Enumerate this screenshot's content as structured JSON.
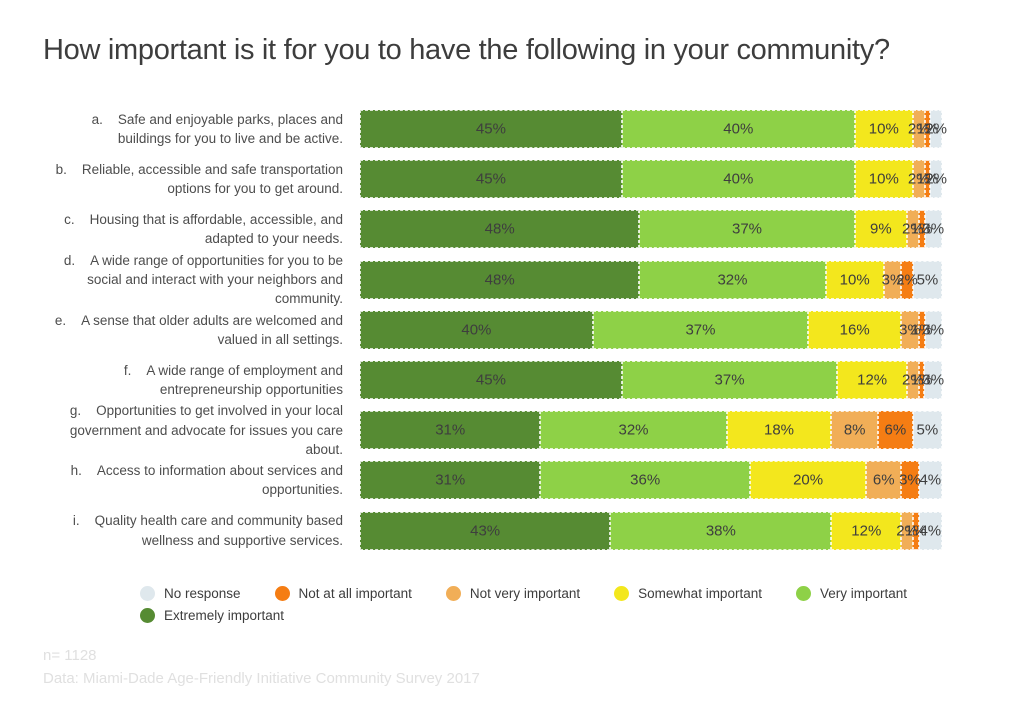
{
  "title": "How important is it for you to have the following in your community?",
  "footer": {
    "n": "n= 1128",
    "source": "Data: Miami-Dade Age-Friendly Initiative Community Survey 2017"
  },
  "colors": {
    "extremely_important": "#568b33",
    "very_important": "#8ed147",
    "somewhat_important": "#f3e71d",
    "not_very_important": "#f1ae57",
    "not_at_all_important": "#f57d13",
    "no_response": "#dfe8ed",
    "title_text": "#3d3d3d",
    "label_text": "#4d4d4d",
    "bar_label_text": "#3e3e3e",
    "footer_text": "#e0e0e0"
  },
  "legend": {
    "rows": [
      [
        {
          "label": "No response",
          "color": "#dfe8ed"
        },
        {
          "label": "Not at all important",
          "color": "#f57d13"
        },
        {
          "label": "Not very important",
          "color": "#f1ae57"
        },
        {
          "label": "Somewhat important",
          "color": "#f3e71d"
        },
        {
          "label": "Very important",
          "color": "#8ed147"
        }
      ],
      [
        {
          "label": "Extremely important",
          "color": "#568b33"
        }
      ]
    ]
  },
  "chart_data": {
    "type": "bar",
    "stacked": true,
    "orientation": "horizontal",
    "value_unit": "%",
    "xlim": [
      0,
      100
    ],
    "grid": false,
    "legend_position": "bottom",
    "categories": [
      {
        "letter": "a.",
        "text": "Safe and enjoyable parks, places and buildings for you to live and be active."
      },
      {
        "letter": "b.",
        "text": "Reliable, accessible and safe transportation options for you to get around."
      },
      {
        "letter": "c.",
        "text": "Housing that is affordable, accessible, and adapted to your needs."
      },
      {
        "letter": "d.",
        "text": "A wide range of opportunities for you to be social and interact with your neighbors and community."
      },
      {
        "letter": "e.",
        "text": "A sense that older adults are welcomed and valued in all settings."
      },
      {
        "letter": "f.",
        "text": "A wide range of employment and entrepreneurship opportunities"
      },
      {
        "letter": "g.",
        "text": "Opportunities to get involved in your local government and advocate for issues you care about."
      },
      {
        "letter": "h.",
        "text": "Access to information about services and opportunities."
      },
      {
        "letter": "i.",
        "text": "Quality health care and community based wellness and supportive services."
      }
    ],
    "series": [
      {
        "name": "Extremely important",
        "color": "#568b33",
        "values": [
          45,
          45,
          48,
          48,
          40,
          45,
          31,
          31,
          43
        ]
      },
      {
        "name": "Very important",
        "color": "#8ed147",
        "values": [
          40,
          40,
          37,
          32,
          37,
          37,
          32,
          36,
          38
        ]
      },
      {
        "name": "Somewhat important",
        "color": "#f3e71d",
        "values": [
          10,
          10,
          9,
          10,
          16,
          12,
          18,
          20,
          12
        ]
      },
      {
        "name": "Not very important",
        "color": "#f1ae57",
        "values": [
          2,
          2,
          2,
          3,
          3,
          2,
          8,
          6,
          2
        ]
      },
      {
        "name": "Not at all important",
        "color": "#f57d13",
        "values": [
          1,
          1,
          1,
          2,
          1,
          1,
          6,
          3,
          1
        ]
      },
      {
        "name": "No response",
        "color": "#dfe8ed",
        "values": [
          2,
          2,
          3,
          5,
          3,
          3,
          5,
          4,
          4
        ]
      }
    ]
  }
}
